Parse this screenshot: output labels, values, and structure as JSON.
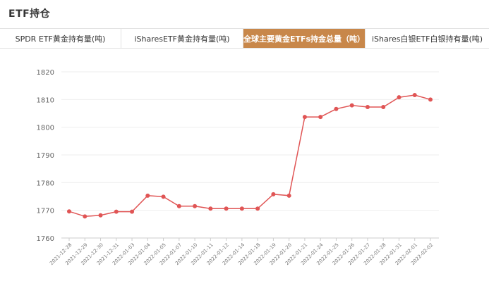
{
  "header": {
    "title": "ETF持仓"
  },
  "tabs": [
    {
      "label": "SPDR ETF黄金持有量(吨)",
      "active": false
    },
    {
      "label": "iSharesETF黄金持有量(吨)",
      "active": false
    },
    {
      "label": "全球主要黄金ETFs持金总量（吨）",
      "active": true
    },
    {
      "label": "iShares白银ETF白银持有量(吨)",
      "active": false
    }
  ],
  "colors": {
    "accent": "#c8874a",
    "series": "#e05555"
  },
  "chart_data": {
    "type": "line",
    "x": [
      "2021-12-28",
      "2021-12-29",
      "2021-12-30",
      "2021-12-31",
      "2022-01-03",
      "2022-01-04",
      "2022-01-05",
      "2022-01-07",
      "2022-01-10",
      "2022-01-11",
      "2022-01-12",
      "2022-01-14",
      "2022-01-18",
      "2022-01-19",
      "2022-01-20",
      "2022-01-21",
      "2022-01-24",
      "2022-01-25",
      "2022-01-26",
      "2022-01-27",
      "2022-01-28",
      "2022-01-31",
      "2022-02-01",
      "2022-02-02"
    ],
    "series": [
      {
        "values": [
          1769.6,
          1767.8,
          1768.2,
          1769.5,
          1769.5,
          1775.3,
          1774.9,
          1771.5,
          1771.5,
          1770.6,
          1770.6,
          1770.6,
          1770.6,
          1775.8,
          1775.3,
          1803.7,
          1803.7,
          1806.6,
          1807.9,
          1807.3,
          1807.3,
          1810.8,
          1811.6,
          1810.0
        ]
      }
    ],
    "ylim": [
      1760,
      1820
    ],
    "yticks": [
      1760,
      1770,
      1780,
      1790,
      1800,
      1810,
      1820
    ],
    "grid": true
  }
}
